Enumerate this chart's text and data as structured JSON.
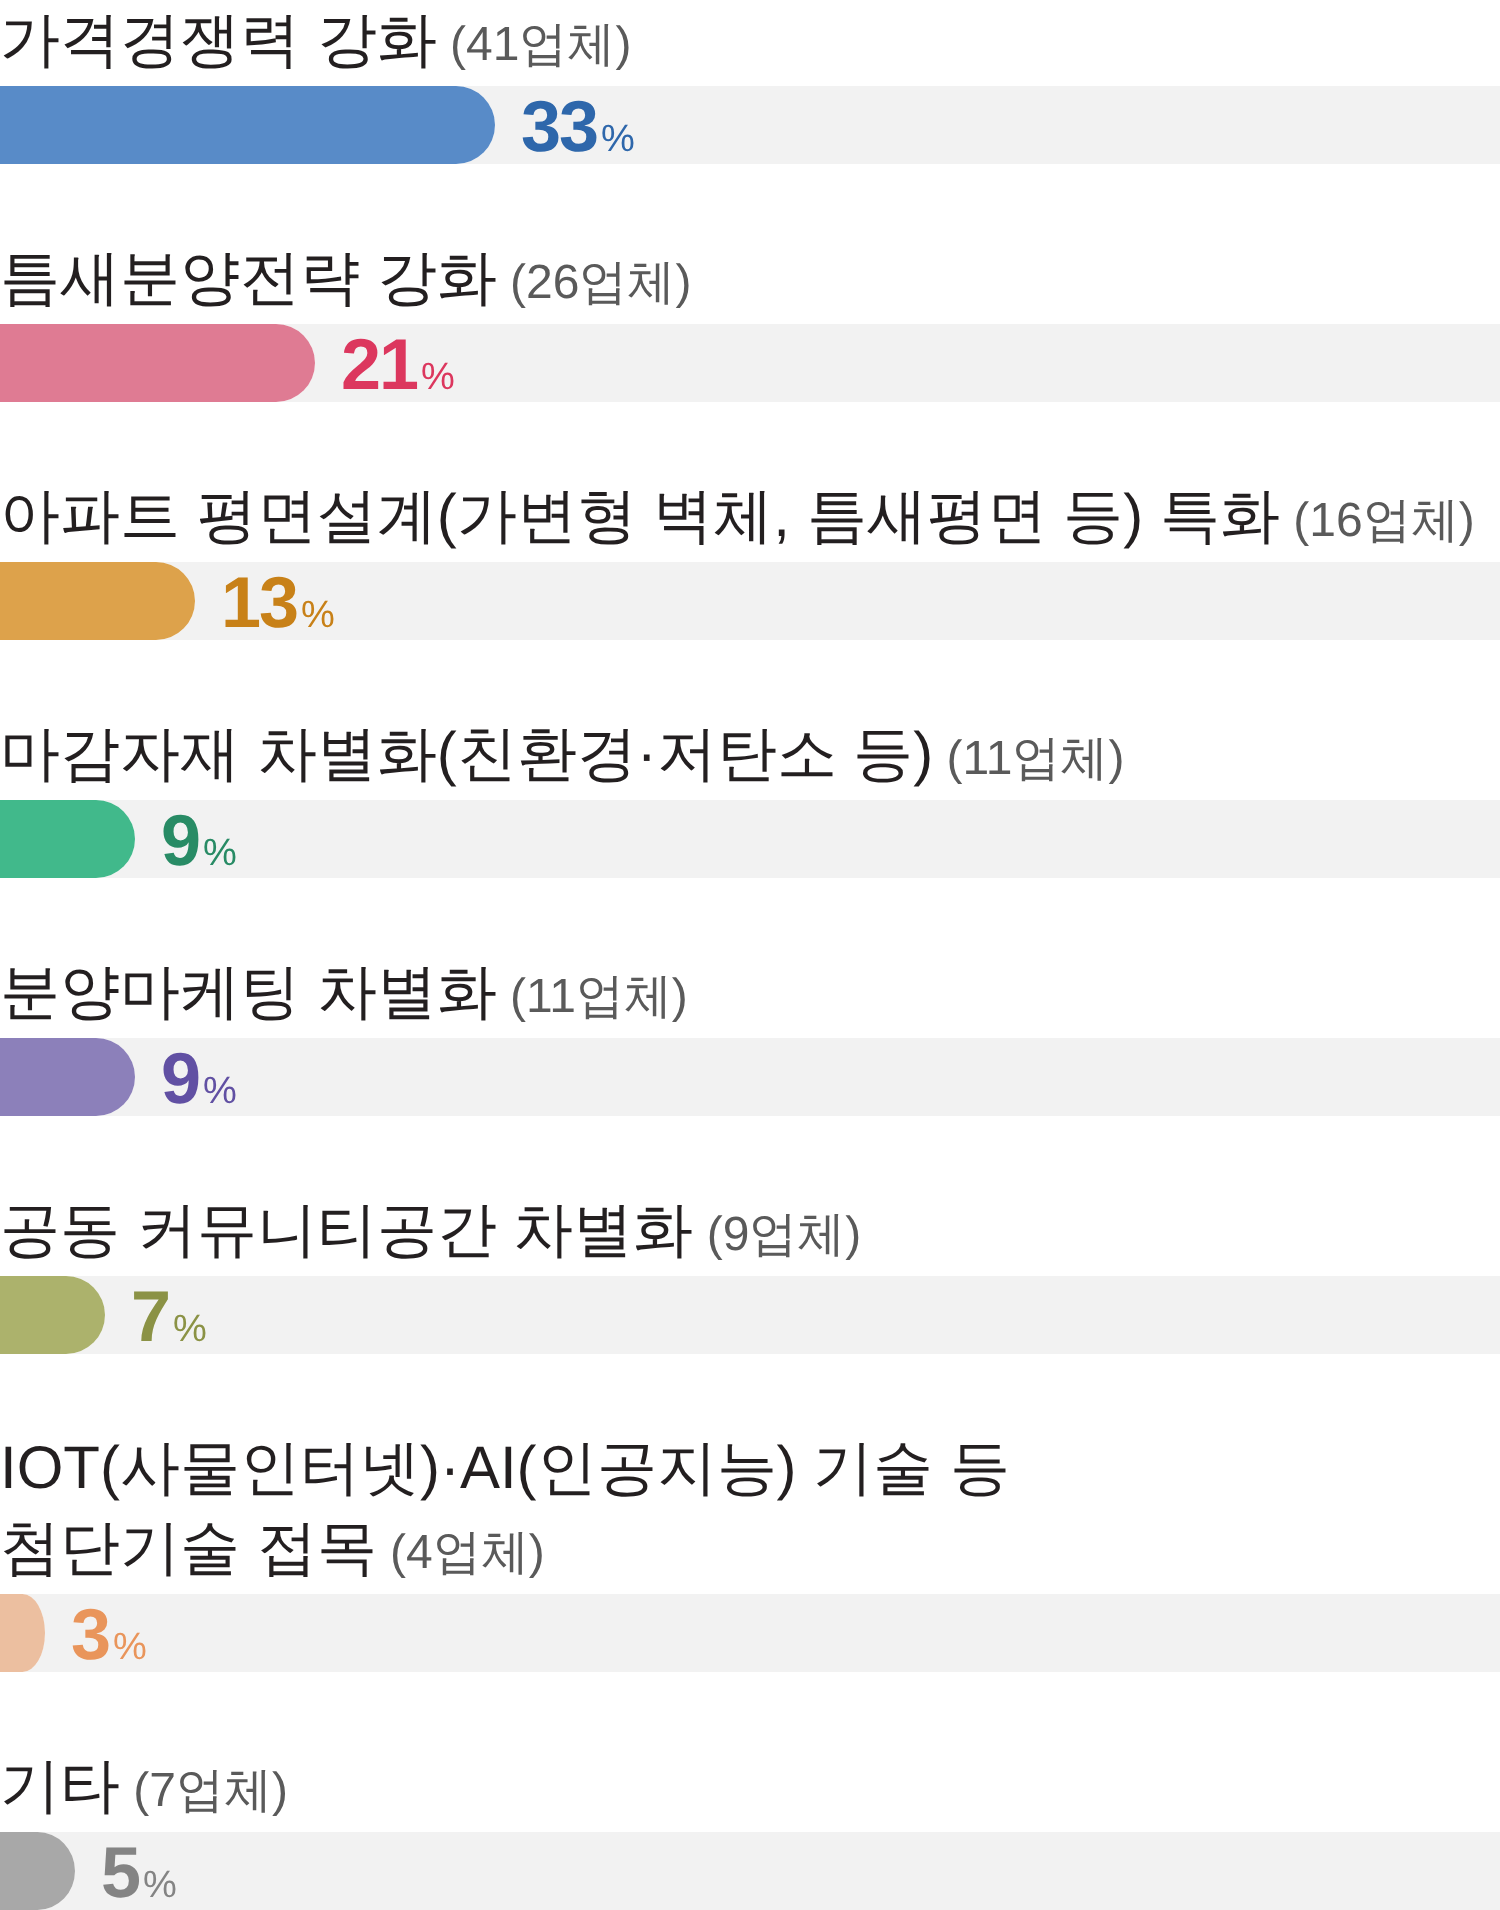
{
  "chart_data": {
    "type": "bar",
    "orientation": "horizontal",
    "categories": [
      "가격경쟁력 강화 (41업체)",
      "틈새분양전략 강화 (26업체)",
      "아파트 평면설계(가변형 벽체, 틈새평면 등) 특화 (16업체)",
      "마감자재 차별화(친환경·저탄소 등) (11업체)",
      "분양마케팅 차별화 (11업체)",
      "공동 커뮤니티공간 차별화 (9업체)",
      "IOT(사물인터넷)·AI(인공지능) 기술 등\n첨단기술 접목 (4업체)",
      "기타 (7업체)"
    ],
    "values": [
      33,
      21,
      13,
      9,
      9,
      7,
      3,
      5
    ],
    "colors": [
      "#588bc8",
      "#df7b93",
      "#dda24b",
      "#41b98b",
      "#8c80ba",
      "#acb26c",
      "#ecbfa0",
      "#a8a8a8"
    ],
    "value_labels": [
      "33%",
      "21%",
      "13%",
      "9%",
      "9%",
      "7%",
      "3%",
      "5%"
    ],
    "xlim": [
      0,
      100
    ],
    "tick_labels": "y"
  }
}
